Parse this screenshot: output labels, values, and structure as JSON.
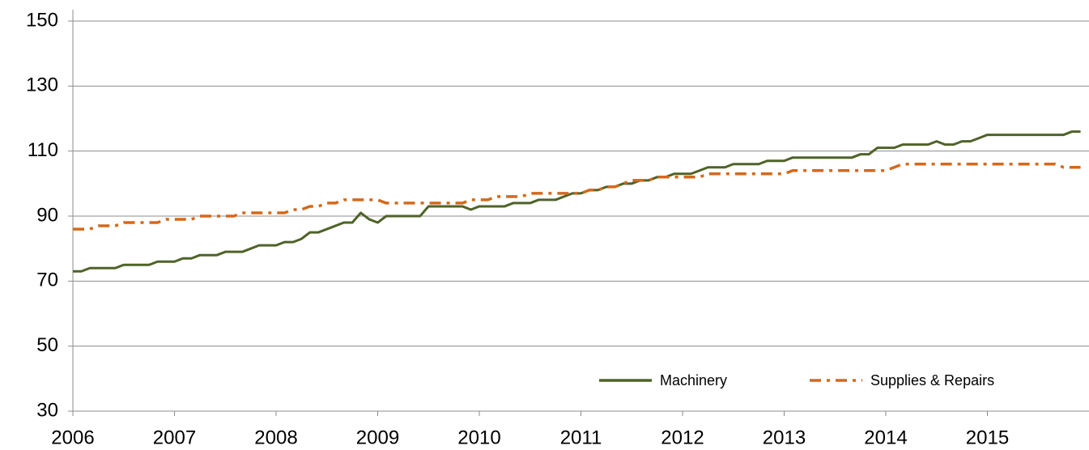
{
  "chart_data": {
    "type": "line",
    "x": [
      2006,
      2006.083,
      2006.167,
      2006.25,
      2006.333,
      2006.417,
      2006.5,
      2006.583,
      2006.667,
      2006.75,
      2006.833,
      2006.917,
      2007,
      2007.083,
      2007.167,
      2007.25,
      2007.333,
      2007.417,
      2007.5,
      2007.583,
      2007.667,
      2007.75,
      2007.833,
      2007.917,
      2008,
      2008.083,
      2008.167,
      2008.25,
      2008.333,
      2008.417,
      2008.5,
      2008.583,
      2008.667,
      2008.75,
      2008.833,
      2008.917,
      2009,
      2009.083,
      2009.167,
      2009.25,
      2009.333,
      2009.417,
      2009.5,
      2009.583,
      2009.667,
      2009.75,
      2009.833,
      2009.917,
      2010,
      2010.083,
      2010.167,
      2010.25,
      2010.333,
      2010.417,
      2010.5,
      2010.583,
      2010.667,
      2010.75,
      2010.833,
      2010.917,
      2011,
      2011.083,
      2011.167,
      2011.25,
      2011.333,
      2011.417,
      2011.5,
      2011.583,
      2011.667,
      2011.75,
      2011.833,
      2011.917,
      2012,
      2012.083,
      2012.167,
      2012.25,
      2012.333,
      2012.417,
      2012.5,
      2012.583,
      2012.667,
      2012.75,
      2012.833,
      2012.917,
      2013,
      2013.083,
      2013.167,
      2013.25,
      2013.333,
      2013.417,
      2013.5,
      2013.583,
      2013.667,
      2013.75,
      2013.833,
      2013.917,
      2014,
      2014.083,
      2014.167,
      2014.25,
      2014.333,
      2014.417,
      2014.5,
      2014.583,
      2014.667,
      2014.75,
      2014.833,
      2014.917,
      2015,
      2015.083,
      2015.167,
      2015.25,
      2015.333,
      2015.417,
      2015.5,
      2015.583,
      2015.667,
      2015.75,
      2015.833,
      2015.917
    ],
    "series": [
      {
        "name": "Machinery",
        "color": "#4f6228",
        "dash": "solid",
        "values": [
          73,
          73,
          74,
          74,
          74,
          74,
          75,
          75,
          75,
          75,
          76,
          76,
          76,
          77,
          77,
          78,
          78,
          78,
          79,
          79,
          79,
          80,
          81,
          81,
          81,
          82,
          82,
          83,
          85,
          85,
          86,
          87,
          88,
          88,
          91,
          89,
          88,
          90,
          90,
          90,
          90,
          90,
          93,
          93,
          93,
          93,
          93,
          92,
          93,
          93,
          93,
          93,
          94,
          94,
          94,
          95,
          95,
          95,
          96,
          97,
          97,
          98,
          98,
          99,
          99,
          100,
          100,
          101,
          101,
          102,
          102,
          103,
          103,
          103,
          104,
          105,
          105,
          105,
          106,
          106,
          106,
          106,
          107,
          107,
          107,
          108,
          108,
          108,
          108,
          108,
          108,
          108,
          108,
          109,
          109,
          111,
          111,
          111,
          112,
          112,
          112,
          112,
          113,
          112,
          112,
          113,
          113,
          114,
          115,
          115,
          115,
          115,
          115,
          115,
          115,
          115,
          115,
          115,
          116,
          116
        ]
      },
      {
        "name": "Supplies & Repairs",
        "color": "#d4691c",
        "dash": "dashdot",
        "values": [
          86,
          86,
          86,
          87,
          87,
          87,
          88,
          88,
          88,
          88,
          88,
          89,
          89,
          89,
          89,
          90,
          90,
          90,
          90,
          90,
          91,
          91,
          91,
          91,
          91,
          91,
          92,
          92,
          93,
          93,
          94,
          94,
          95,
          95,
          95,
          95,
          95,
          94,
          94,
          94,
          94,
          94,
          94,
          94,
          94,
          94,
          94,
          95,
          95,
          95,
          96,
          96,
          96,
          96,
          97,
          97,
          97,
          97,
          97,
          97,
          97,
          98,
          98,
          99,
          99,
          100,
          101,
          101,
          101,
          102,
          102,
          102,
          102,
          102,
          102,
          103,
          103,
          103,
          103,
          103,
          103,
          103,
          103,
          103,
          103,
          104,
          104,
          104,
          104,
          104,
          104,
          104,
          104,
          104,
          104,
          104,
          104,
          105,
          106,
          106,
          106,
          106,
          106,
          106,
          106,
          106,
          106,
          106,
          106,
          106,
          106,
          106,
          106,
          106,
          106,
          106,
          106,
          105,
          105,
          105
        ]
      }
    ],
    "xlim": [
      2006,
      2016
    ],
    "xticks": [
      2006,
      2007,
      2008,
      2009,
      2010,
      2011,
      2012,
      2013,
      2014,
      2015
    ],
    "ylim": [
      30,
      150
    ],
    "yticks": [
      30,
      50,
      70,
      90,
      110,
      130,
      150
    ],
    "grid": true,
    "legend": "lower right"
  }
}
